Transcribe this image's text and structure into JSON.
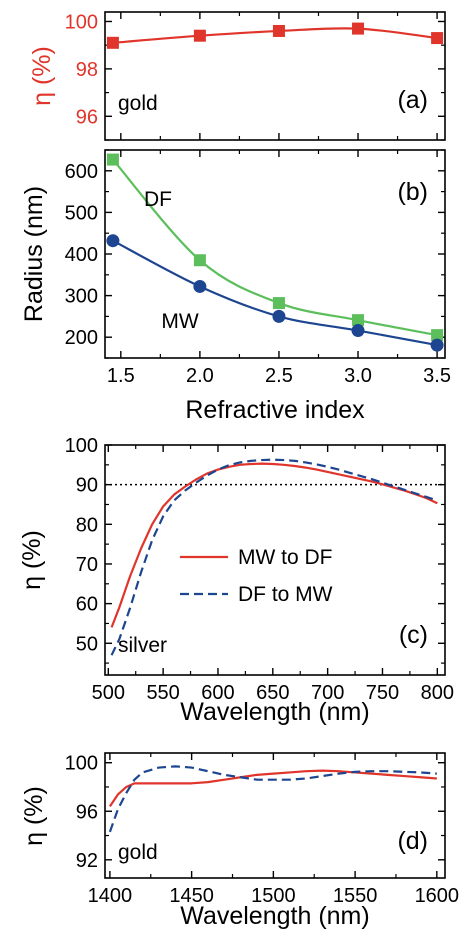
{
  "chart_data": [
    {
      "id": "a",
      "type": "line",
      "panel_label": "(a)",
      "annotation": "gold",
      "xlabel": "",
      "ylabel": "η (%)",
      "xlim": [
        1.4,
        3.55
      ],
      "ylim": [
        95,
        100.4
      ],
      "xticks": [
        1.5,
        2.0,
        2.5,
        3.0,
        3.5
      ],
      "yticks": [
        96,
        98,
        100
      ],
      "ytick_labels": [
        "96",
        "98",
        "100"
      ],
      "ylabel_color": "#e0352b",
      "series": [
        {
          "color": "#e0352b",
          "marker": "square",
          "x": [
            1.45,
            2.0,
            2.5,
            3.0,
            3.5
          ],
          "y": [
            99.1,
            99.4,
            99.6,
            99.7,
            99.3
          ]
        }
      ]
    },
    {
      "id": "b",
      "type": "line",
      "panel_label": "(b)",
      "xlabel": "Refractive index",
      "ylabel": "Radius (nm)",
      "xlim": [
        1.4,
        3.55
      ],
      "ylim": [
        150,
        650
      ],
      "xticks": [
        1.5,
        2.0,
        2.5,
        3.0,
        3.5
      ],
      "xtick_labels": [
        "1.5",
        "2.0",
        "2.5",
        "3.0",
        "3.5"
      ],
      "yticks": [
        200,
        300,
        400,
        500,
        600
      ],
      "ytick_labels": [
        "200",
        "300",
        "400",
        "500",
        "600"
      ],
      "series": [
        {
          "name": "DF",
          "color": "#5cbf5c",
          "marker": "square",
          "x": [
            1.45,
            2.0,
            2.5,
            3.0,
            3.5
          ],
          "y": [
            627,
            385,
            282,
            241,
            205
          ]
        },
        {
          "name": "MW",
          "color": "#1d4590",
          "marker": "circle",
          "x": [
            1.45,
            2.0,
            2.5,
            3.0,
            3.5
          ],
          "y": [
            432,
            322,
            250,
            216,
            181
          ]
        }
      ]
    },
    {
      "id": "c",
      "type": "line",
      "panel_label": "(c)",
      "annotation": "silver",
      "xlabel": "Wavelength (nm)",
      "ylabel": "η (%)",
      "xlim": [
        497,
        807
      ],
      "ylim": [
        42,
        100
      ],
      "xticks": [
        500,
        550,
        600,
        650,
        700,
        750,
        800
      ],
      "xtick_labels": [
        "500",
        "550",
        "600",
        "650",
        "700",
        "750",
        "800"
      ],
      "yticks": [
        50,
        60,
        70,
        80,
        90,
        100
      ],
      "ytick_labels": [
        "50",
        "60",
        "70",
        "80",
        "90",
        "100"
      ],
      "reference_line": 90,
      "series": [
        {
          "name": "MW to DF",
          "color": "#e0352b",
          "style": "solid",
          "x": [
            503,
            510,
            520,
            530,
            540,
            550,
            560,
            570,
            580,
            590,
            600,
            610,
            620,
            630,
            640,
            650,
            660,
            670,
            680,
            690,
            700,
            710,
            720,
            730,
            740,
            750,
            760,
            770,
            780,
            790,
            800
          ],
          "y": [
            54,
            59,
            67,
            74,
            80,
            84.5,
            87.5,
            89.5,
            91.3,
            92.8,
            93.8,
            94.5,
            95.0,
            95.2,
            95.3,
            95.2,
            95.0,
            94.7,
            94.3,
            93.8,
            93.2,
            92.6,
            92.0,
            91.4,
            90.8,
            90.1,
            89.3,
            88.5,
            87.6,
            86.6,
            85.3
          ]
        },
        {
          "name": "DF to MW",
          "color": "#1d4590",
          "style": "dashed",
          "x": [
            503,
            510,
            520,
            530,
            540,
            550,
            560,
            570,
            580,
            590,
            600,
            610,
            620,
            630,
            640,
            650,
            660,
            670,
            680,
            690,
            700,
            710,
            720,
            730,
            740,
            750,
            760,
            770,
            780,
            790,
            800
          ],
          "y": [
            47,
            51,
            59,
            68,
            76,
            82,
            86,
            88.5,
            90.5,
            92.3,
            93.8,
            94.9,
            95.6,
            96.0,
            96.2,
            96.3,
            96.2,
            96.0,
            95.6,
            95.1,
            94.5,
            93.8,
            93.0,
            92.2,
            91.4,
            90.5,
            89.6,
            88.7,
            87.8,
            86.9,
            86.0
          ]
        }
      ]
    },
    {
      "id": "d",
      "type": "line",
      "panel_label": "(d)",
      "annotation": "gold",
      "xlabel": "Wavelength (nm)",
      "ylabel": "η (%)",
      "xlim": [
        1397,
        1605
      ],
      "ylim": [
        90.5,
        100.8
      ],
      "xticks": [
        1400,
        1450,
        1500,
        1550,
        1600
      ],
      "xtick_labels": [
        "1400",
        "1450",
        "1500",
        "1550",
        "1600"
      ],
      "yticks": [
        92,
        96,
        100
      ],
      "ytick_labels": [
        "92",
        "96",
        "100"
      ],
      "series": [
        {
          "name": "MW to DF",
          "color": "#e0352b",
          "style": "solid",
          "x": [
            1400,
            1405,
            1410,
            1415,
            1420,
            1430,
            1440,
            1450,
            1460,
            1470,
            1480,
            1490,
            1500,
            1510,
            1520,
            1530,
            1540,
            1550,
            1560,
            1570,
            1580,
            1590,
            1600
          ],
          "y": [
            96.4,
            97.4,
            98.0,
            98.3,
            98.3,
            98.3,
            98.3,
            98.3,
            98.4,
            98.6,
            98.8,
            99.0,
            99.1,
            99.2,
            99.3,
            99.35,
            99.3,
            99.2,
            99.1,
            99.0,
            98.9,
            98.8,
            98.7
          ]
        },
        {
          "name": "DF to MW",
          "color": "#1d4590",
          "style": "dashed",
          "x": [
            1400,
            1405,
            1410,
            1415,
            1420,
            1430,
            1440,
            1450,
            1460,
            1470,
            1480,
            1490,
            1500,
            1510,
            1520,
            1530,
            1540,
            1550,
            1560,
            1570,
            1580,
            1590,
            1600
          ],
          "y": [
            94.3,
            96.2,
            97.5,
            98.6,
            99.2,
            99.6,
            99.7,
            99.6,
            99.3,
            99.0,
            98.8,
            98.6,
            98.6,
            98.6,
            98.7,
            98.9,
            99.1,
            99.25,
            99.3,
            99.3,
            99.25,
            99.2,
            99.1
          ]
        }
      ]
    }
  ]
}
